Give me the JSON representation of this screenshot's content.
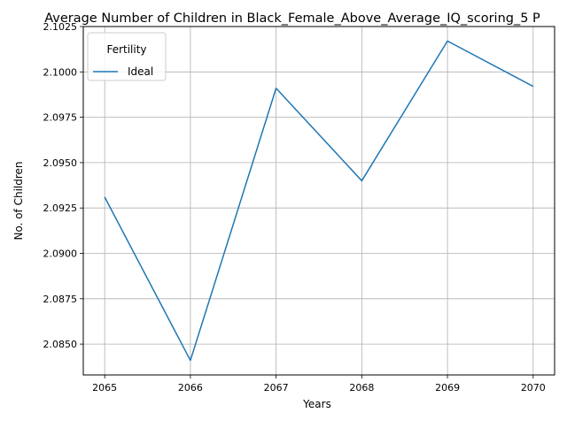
{
  "chart_data": {
    "type": "line",
    "title": "Average Number of Children in Black_Female_Above_Average_IQ_scoring_5 P",
    "xlabel": "Years",
    "ylabel": "No. of Children",
    "x": [
      2065,
      2066,
      2067,
      2068,
      2069,
      2070
    ],
    "x_tick_labels": [
      "2065",
      "2066",
      "2067",
      "2068",
      "2069",
      "2070"
    ],
    "y_ticks": [
      2.085,
      2.0875,
      2.09,
      2.0925,
      2.095,
      2.0975,
      2.1,
      2.1025
    ],
    "y_tick_labels": [
      "2.0850",
      "2.0875",
      "2.0900",
      "2.0925",
      "2.0950",
      "2.0975",
      "2.1000",
      "2.1025"
    ],
    "ylim": [
      2.0833,
      2.1025
    ],
    "xlim": [
      2064.75,
      2070.25
    ],
    "grid": true,
    "legend": {
      "title": "Fertility",
      "placement": "top-left"
    },
    "series": [
      {
        "name": "Ideal",
        "color": "#1f77b4",
        "values": [
          2.0931,
          2.0841,
          2.0991,
          2.094,
          2.1017,
          2.0992
        ]
      }
    ]
  }
}
